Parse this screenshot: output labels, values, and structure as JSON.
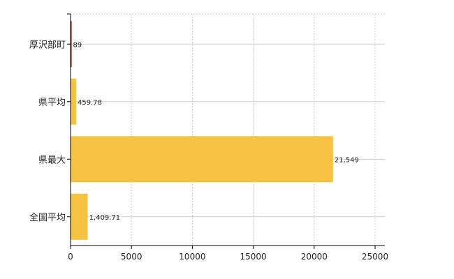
{
  "chart_data": {
    "type": "bar",
    "orientation": "horizontal",
    "categories": [
      "厚沢部町",
      "県平均",
      "県最大",
      "全国平均"
    ],
    "series": [
      {
        "values": [
          89,
          459.78,
          21549,
          1409.71
        ],
        "data_labels": [
          "89",
          "459.78",
          "21,549",
          "1,409.71"
        ],
        "colors": [
          "#c00000",
          "#f5c242",
          "#f5c242",
          "#f5c242"
        ]
      }
    ],
    "x_ticks": [
      "0",
      "5000",
      "10000",
      "15000",
      "20000",
      "25000"
    ],
    "xlim": [
      0,
      25000
    ],
    "grid": true,
    "legend": "none"
  }
}
